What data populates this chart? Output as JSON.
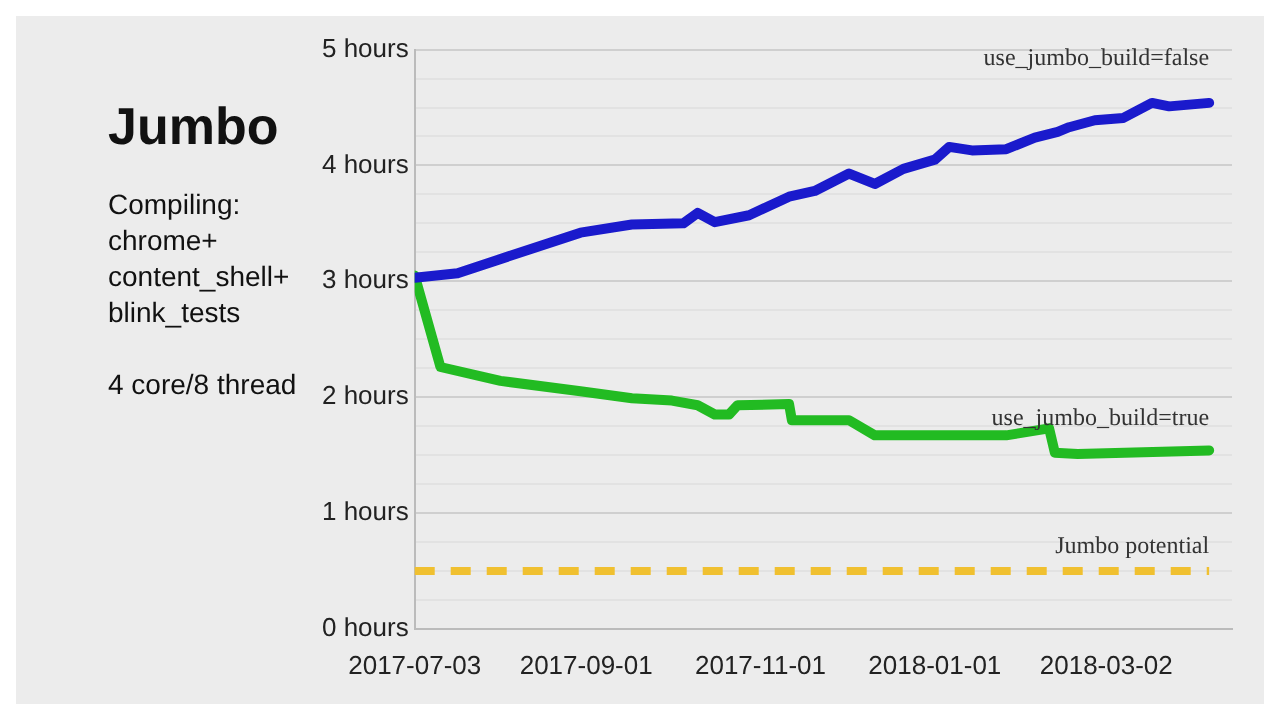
{
  "chart_data": {
    "type": "line",
    "title": "Jumbo",
    "annotations": [
      "Compiling:",
      "chrome+",
      "content_shell+",
      "blink_tests",
      "4 core/8 thread"
    ],
    "series": [
      {
        "name": "use_jumbo_build=false",
        "color": "#1a1acc",
        "x": [
          "2017-07-03",
          "2017-07-18",
          "2017-08-30",
          "2017-09-17",
          "2017-10-05",
          "2017-10-10",
          "2017-10-16",
          "2017-10-28",
          "2017-11-11",
          "2017-11-20",
          "2017-12-02",
          "2017-12-11",
          "2017-12-21",
          "2018-01-01",
          "2018-01-06",
          "2018-01-14",
          "2018-01-26",
          "2018-02-05",
          "2018-02-13",
          "2018-02-17",
          "2018-02-26",
          "2018-03-08",
          "2018-03-18",
          "2018-03-24",
          "2018-04-07"
        ],
        "values": [
          3.03,
          3.07,
          3.42,
          3.49,
          3.5,
          3.59,
          3.51,
          3.57,
          3.73,
          3.78,
          3.93,
          3.84,
          3.97,
          4.05,
          4.16,
          4.13,
          4.14,
          4.24,
          4.29,
          4.33,
          4.39,
          4.41,
          4.54,
          4.51,
          4.54
        ]
      },
      {
        "name": "use_jumbo_build=true",
        "color": "#22bb22",
        "x": [
          "2017-07-03",
          "2017-07-12",
          "2017-08-02",
          "2017-08-30",
          "2017-09-17",
          "2017-10-01",
          "2017-10-10",
          "2017-10-16",
          "2017-10-21",
          "2017-10-24",
          "2017-11-11",
          "2017-11-12",
          "2017-12-02",
          "2017-12-11",
          "2017-12-18",
          "2018-01-26",
          "2018-02-10",
          "2018-02-12",
          "2018-02-20",
          "2018-04-07"
        ],
        "values": [
          3.05,
          2.26,
          2.14,
          2.05,
          1.99,
          1.97,
          1.93,
          1.85,
          1.85,
          1.93,
          1.94,
          1.8,
          1.8,
          1.67,
          1.67,
          1.67,
          1.73,
          1.52,
          1.51,
          1.54
        ]
      }
    ],
    "ref_lines": [
      {
        "axis": "y",
        "value": 0.5,
        "label": "Jumbo potential",
        "color": "#f0c030",
        "line_style": "dashed"
      }
    ],
    "xlim": [
      "2017-07-03",
      "2018-04-15"
    ],
    "xticks": [
      "2017-07-03",
      "2017-09-01",
      "2017-11-01",
      "2018-01-01",
      "2018-03-02"
    ],
    "ylim": [
      0,
      5
    ],
    "yticks": [
      {
        "value": 0,
        "label": "0 hours"
      },
      {
        "value": 0.25,
        "label": null
      },
      {
        "value": 0.5,
        "label": null
      },
      {
        "value": 0.75,
        "label": null
      },
      {
        "value": 1,
        "label": "1 hours"
      },
      {
        "value": 1.25,
        "label": null
      },
      {
        "value": 1.5,
        "label": null
      },
      {
        "value": 1.75,
        "label": null
      },
      {
        "value": 2,
        "label": "2 hours"
      },
      {
        "value": 2.25,
        "label": null
      },
      {
        "value": 2.5,
        "label": null
      },
      {
        "value": 2.75,
        "label": null
      },
      {
        "value": 3,
        "label": "3 hours"
      },
      {
        "value": 3.25,
        "label": null
      },
      {
        "value": 3.5,
        "label": null
      },
      {
        "value": 3.75,
        "label": null
      },
      {
        "value": 4,
        "label": "4 hours"
      },
      {
        "value": 4.25,
        "label": null
      },
      {
        "value": 4.5,
        "label": null
      },
      {
        "value": 4.75,
        "label": null
      },
      {
        "value": 5,
        "label": "5 hours"
      }
    ],
    "grid": "y",
    "legend": false,
    "marker": "none",
    "line_style": "solid"
  }
}
